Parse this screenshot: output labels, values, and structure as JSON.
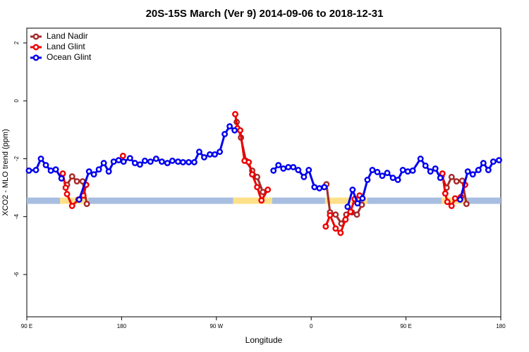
{
  "chart_data": {
    "type": "line",
    "title": "20S-15S March (Ver 9)   2014-09-06 to 2018-12-31",
    "x_label": "Longitude",
    "y_label": "XCO2 - MLO trend (ppm)",
    "xlim": [
      90,
      540
    ],
    "ylim": [
      -7.46,
      2.51
    ],
    "xticks": [
      {
        "value": 90,
        "label": "90 E"
      },
      180,
      {
        "value": 270,
        "label": "90 W"
      },
      {
        "value": 360,
        "label": "0"
      },
      {
        "value": 450,
        "label": "90 E"
      },
      {
        "value": 540,
        "label": "180"
      }
    ],
    "yticks": [
      2,
      0,
      -2,
      -4,
      -6
    ],
    "grid": false,
    "legend": "top-left",
    "surface": {
      "y": -3.45,
      "segments": [
        {
          "from": 90,
          "to": 121.5,
          "color": "#a8bee0"
        },
        {
          "from": 121.5,
          "to": 148.4,
          "color": "#fde089"
        },
        {
          "from": 148.4,
          "to": 286,
          "color": "#a8bee0"
        },
        {
          "from": 286,
          "to": 322.9,
          "color": "#fde089"
        },
        {
          "from": 322.9,
          "to": 373.2,
          "color": "#a8bee0"
        },
        {
          "from": 373.2,
          "to": 413.4,
          "color": "#fde089"
        },
        {
          "from": 413.4,
          "to": 483.9,
          "color": "#a8bee0"
        },
        {
          "from": 483.9,
          "to": 507.4,
          "color": "#fde089"
        },
        {
          "from": 507.4,
          "to": 540,
          "color": "#a8bee0"
        }
      ]
    },
    "series": [
      {
        "name": "Land Nadir",
        "color": "#a52a2a",
        "x": [
          128.2,
          133.0,
          137.6,
          143.0,
          147.0,
          null,
          289.3,
          293.3,
          298.0,
          304.0,
          308.7,
          314.1,
          null,
          374.5,
          377.9,
          383.2,
          388.6,
          393.3,
          398.7,
          403.4,
          408.1,
          null,
          483.9,
          488.6,
          493.3,
          498.0,
          503.4,
          507.4
        ],
        "values": [
          -2.9,
          -2.61,
          -2.78,
          -2.78,
          -3.56,
          null,
          -0.73,
          -1.27,
          -2.07,
          -2.41,
          -2.63,
          -3.15,
          null,
          -2.88,
          -3.85,
          -3.93,
          -4.24,
          -3.93,
          -3.85,
          -3.93,
          -3.59,
          null,
          -2.59,
          -3.0,
          -2.63,
          -2.78,
          -2.76,
          -3.56
        ]
      },
      {
        "name": "Land Glint",
        "color": "#ee0000",
        "x": [
          124.2,
          126.9,
          128.2,
          133.0,
          139.0,
          143.7,
          146.4,
          null,
          181.3,
          null,
          287.9,
          290.0,
          292.6,
          296.7,
          300.7,
          304.0,
          308.7,
          312.8,
          318.8,
          null,
          373.8,
          377.9,
          383.2,
          387.9,
          392.6,
          397.3,
          401.3,
          406.0,
          null,
          484.6,
          487.3,
          489.3,
          493.3,
          496.7,
          502.1,
          506.1
        ],
        "values": [
          -2.51,
          -3.0,
          -3.22,
          -3.63,
          -3.41,
          -3.27,
          -2.9,
          null,
          -1.9,
          null,
          -0.46,
          -0.95,
          -1.02,
          -2.07,
          -2.12,
          -2.54,
          -2.98,
          -3.44,
          -3.07,
          null,
          -4.34,
          -3.95,
          -4.41,
          -4.56,
          -4.1,
          -3.83,
          -3.39,
          -3.27,
          null,
          -2.51,
          -3.2,
          -3.49,
          -3.63,
          -3.37,
          -3.32,
          -2.9
        ]
      },
      {
        "name": "Ocean Glint",
        "color": "#0000ee",
        "x": [
          92.0,
          98.7,
          103.4,
          108.1,
          112.8,
          117.5,
          122.9,
          null,
          139.7,
          149.1,
          153.7,
          158.4,
          163.1,
          167.8,
          172.5,
          177.2,
          181.9,
          188.0,
          192.7,
          197.4,
          202.1,
          207.4,
          212.8,
          218.2,
          223.5,
          228.2,
          233.6,
          238.3,
          243.7,
          249.0,
          253.7,
          258.4,
          263.8,
          268.5,
          273.2,
          277.9,
          282.6,
          287.3,
          null,
          324.2,
          328.9,
          333.6,
          338.3,
          343.0,
          347.7,
          353.1,
          357.7,
          363.1,
          367.8,
          372.5,
          null,
          394.6,
          399.3,
          404.0,
          408.7,
          413.4,
          418.1,
          422.8,
          427.5,
          432.2,
          437.6,
          442.3,
          447.0,
          451.7,
          456.4,
          463.8,
          468.5,
          473.2,
          477.9,
          482.6,
          null,
          501.4,
          508.7,
          513.4,
          518.8,
          523.5,
          528.2,
          532.9,
          538.3
        ],
        "values": [
          -2.41,
          -2.39,
          -2.0,
          -2.22,
          -2.41,
          -2.37,
          -2.68,
          null,
          -3.41,
          -2.44,
          -2.54,
          -2.37,
          -2.15,
          -2.44,
          -2.1,
          -2.05,
          -2.1,
          -1.98,
          -2.15,
          -2.2,
          -2.07,
          -2.1,
          -2.0,
          -2.1,
          -2.15,
          -2.07,
          -2.1,
          -2.12,
          -2.12,
          -2.12,
          -1.76,
          -1.95,
          -1.85,
          -1.85,
          -1.76,
          -1.15,
          -0.88,
          -1.02,
          null,
          -2.41,
          -2.22,
          -2.34,
          -2.29,
          -2.29,
          -2.39,
          -2.63,
          -2.39,
          -2.98,
          -3.02,
          -2.98,
          null,
          -3.66,
          -3.07,
          -3.54,
          -3.37,
          -2.73,
          -2.39,
          -2.46,
          -2.59,
          -2.49,
          -2.66,
          -2.73,
          -2.39,
          -2.44,
          -2.41,
          -2.0,
          -2.24,
          -2.44,
          -2.34,
          -2.66,
          null,
          -3.41,
          -2.44,
          -2.54,
          -2.39,
          -2.15,
          -2.39,
          -2.1,
          -2.05
        ]
      }
    ]
  }
}
